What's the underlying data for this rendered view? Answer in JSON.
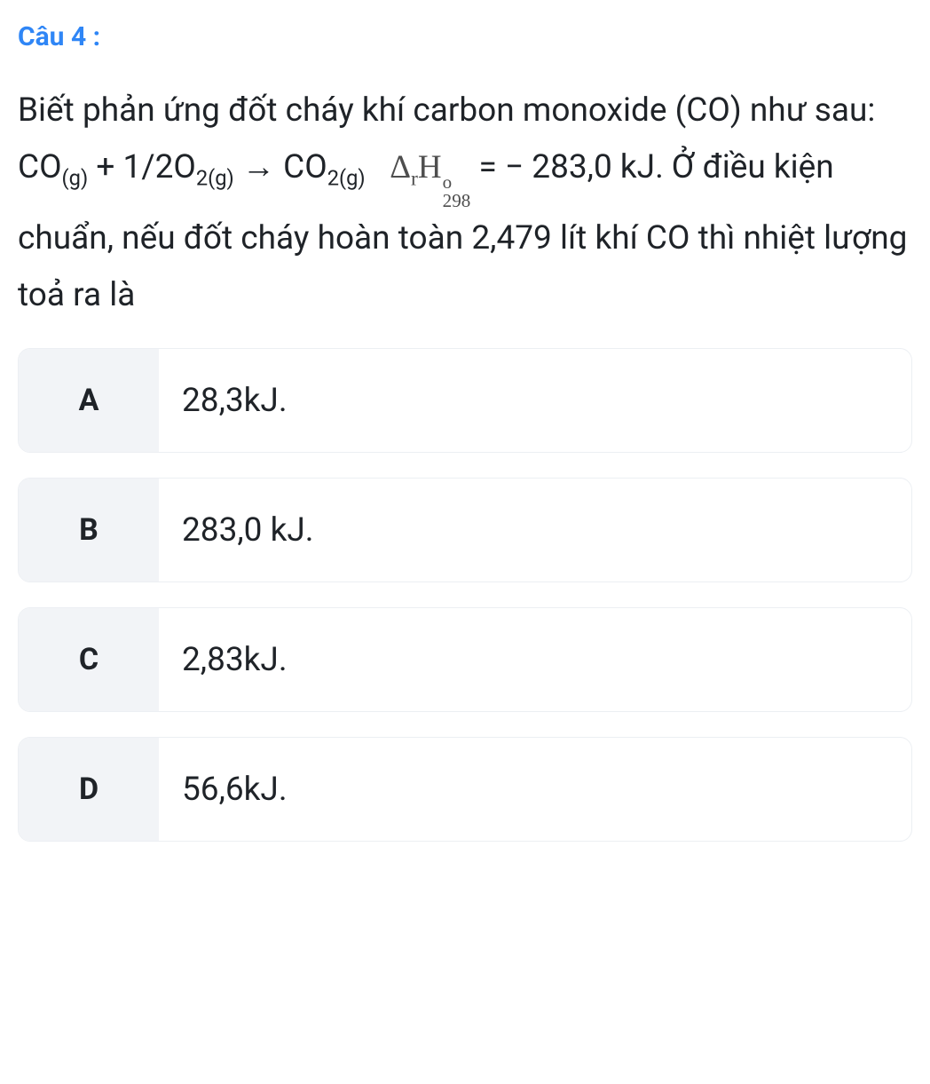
{
  "question": {
    "number": "Câu 4 :",
    "intro": "Biết phản ứng đốt cháy khí carbon monoxide (CO) như sau:",
    "eq_co": "CO",
    "eq_co_phase": "(g)",
    "eq_plus": " + 1/2O",
    "eq_o2_sub": "2(g)",
    "eq_arrow": " → CO",
    "eq_co2_sub": "2(g)",
    "eq_deltaH_value": "  = − 283,0 kJ. Ở điều kiện chuẩn, nếu đốt cháy hoàn toàn 2,479 lít khí CO thì nhiệt lượng toả ra là"
  },
  "thermo": {
    "delta": "Δ",
    "r": "r",
    "H": "H",
    "sup": "o",
    "sub": "298"
  },
  "options": [
    {
      "letter": "A",
      "text": "28,3kJ."
    },
    {
      "letter": "B",
      "text": "283,0 kJ."
    },
    {
      "letter": "C",
      "text": "2,83kJ."
    },
    {
      "letter": "D",
      "text": "56,6kJ."
    }
  ],
  "style": {
    "accent_color": "#2f86f6",
    "text_color": "#1f2328",
    "option_letter_bg": "#f2f4f7",
    "option_border": "#eceff3",
    "body_bg": "#ffffff",
    "question_fontsize": 37,
    "option_fontsize": 37,
    "qnumber_fontsize": 30,
    "border_radius": 14
  }
}
